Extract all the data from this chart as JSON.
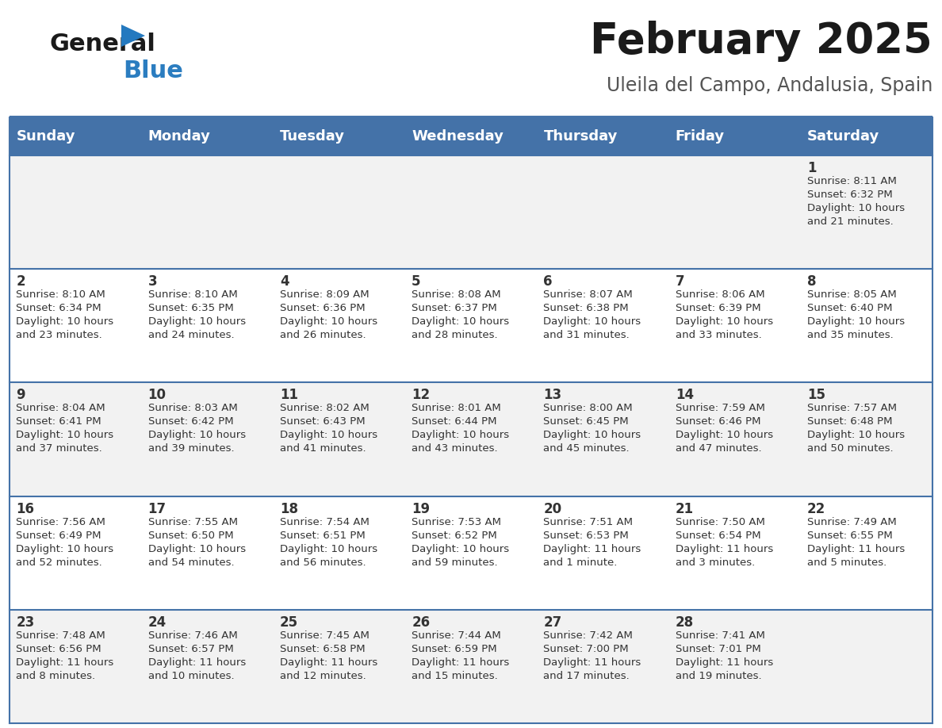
{
  "title": "February 2025",
  "subtitle": "Uleila del Campo, Andalusia, Spain",
  "header_bg": "#4472A8",
  "header_text_color": "#FFFFFF",
  "row_bg_odd": "#F2F2F2",
  "row_bg_even": "#FFFFFF",
  "separator_color": "#4472A8",
  "day_headers": [
    "Sunday",
    "Monday",
    "Tuesday",
    "Wednesday",
    "Thursday",
    "Friday",
    "Saturday"
  ],
  "calendar": [
    [
      {
        "day": "",
        "info": ""
      },
      {
        "day": "",
        "info": ""
      },
      {
        "day": "",
        "info": ""
      },
      {
        "day": "",
        "info": ""
      },
      {
        "day": "",
        "info": ""
      },
      {
        "day": "",
        "info": ""
      },
      {
        "day": "1",
        "info": "Sunrise: 8:11 AM\nSunset: 6:32 PM\nDaylight: 10 hours\nand 21 minutes."
      }
    ],
    [
      {
        "day": "2",
        "info": "Sunrise: 8:10 AM\nSunset: 6:34 PM\nDaylight: 10 hours\nand 23 minutes."
      },
      {
        "day": "3",
        "info": "Sunrise: 8:10 AM\nSunset: 6:35 PM\nDaylight: 10 hours\nand 24 minutes."
      },
      {
        "day": "4",
        "info": "Sunrise: 8:09 AM\nSunset: 6:36 PM\nDaylight: 10 hours\nand 26 minutes."
      },
      {
        "day": "5",
        "info": "Sunrise: 8:08 AM\nSunset: 6:37 PM\nDaylight: 10 hours\nand 28 minutes."
      },
      {
        "day": "6",
        "info": "Sunrise: 8:07 AM\nSunset: 6:38 PM\nDaylight: 10 hours\nand 31 minutes."
      },
      {
        "day": "7",
        "info": "Sunrise: 8:06 AM\nSunset: 6:39 PM\nDaylight: 10 hours\nand 33 minutes."
      },
      {
        "day": "8",
        "info": "Sunrise: 8:05 AM\nSunset: 6:40 PM\nDaylight: 10 hours\nand 35 minutes."
      }
    ],
    [
      {
        "day": "9",
        "info": "Sunrise: 8:04 AM\nSunset: 6:41 PM\nDaylight: 10 hours\nand 37 minutes."
      },
      {
        "day": "10",
        "info": "Sunrise: 8:03 AM\nSunset: 6:42 PM\nDaylight: 10 hours\nand 39 minutes."
      },
      {
        "day": "11",
        "info": "Sunrise: 8:02 AM\nSunset: 6:43 PM\nDaylight: 10 hours\nand 41 minutes."
      },
      {
        "day": "12",
        "info": "Sunrise: 8:01 AM\nSunset: 6:44 PM\nDaylight: 10 hours\nand 43 minutes."
      },
      {
        "day": "13",
        "info": "Sunrise: 8:00 AM\nSunset: 6:45 PM\nDaylight: 10 hours\nand 45 minutes."
      },
      {
        "day": "14",
        "info": "Sunrise: 7:59 AM\nSunset: 6:46 PM\nDaylight: 10 hours\nand 47 minutes."
      },
      {
        "day": "15",
        "info": "Sunrise: 7:57 AM\nSunset: 6:48 PM\nDaylight: 10 hours\nand 50 minutes."
      }
    ],
    [
      {
        "day": "16",
        "info": "Sunrise: 7:56 AM\nSunset: 6:49 PM\nDaylight: 10 hours\nand 52 minutes."
      },
      {
        "day": "17",
        "info": "Sunrise: 7:55 AM\nSunset: 6:50 PM\nDaylight: 10 hours\nand 54 minutes."
      },
      {
        "day": "18",
        "info": "Sunrise: 7:54 AM\nSunset: 6:51 PM\nDaylight: 10 hours\nand 56 minutes."
      },
      {
        "day": "19",
        "info": "Sunrise: 7:53 AM\nSunset: 6:52 PM\nDaylight: 10 hours\nand 59 minutes."
      },
      {
        "day": "20",
        "info": "Sunrise: 7:51 AM\nSunset: 6:53 PM\nDaylight: 11 hours\nand 1 minute."
      },
      {
        "day": "21",
        "info": "Sunrise: 7:50 AM\nSunset: 6:54 PM\nDaylight: 11 hours\nand 3 minutes."
      },
      {
        "day": "22",
        "info": "Sunrise: 7:49 AM\nSunset: 6:55 PM\nDaylight: 11 hours\nand 5 minutes."
      }
    ],
    [
      {
        "day": "23",
        "info": "Sunrise: 7:48 AM\nSunset: 6:56 PM\nDaylight: 11 hours\nand 8 minutes."
      },
      {
        "day": "24",
        "info": "Sunrise: 7:46 AM\nSunset: 6:57 PM\nDaylight: 11 hours\nand 10 minutes."
      },
      {
        "day": "25",
        "info": "Sunrise: 7:45 AM\nSunset: 6:58 PM\nDaylight: 11 hours\nand 12 minutes."
      },
      {
        "day": "26",
        "info": "Sunrise: 7:44 AM\nSunset: 6:59 PM\nDaylight: 11 hours\nand 15 minutes."
      },
      {
        "day": "27",
        "info": "Sunrise: 7:42 AM\nSunset: 7:00 PM\nDaylight: 11 hours\nand 17 minutes."
      },
      {
        "day": "28",
        "info": "Sunrise: 7:41 AM\nSunset: 7:01 PM\nDaylight: 11 hours\nand 19 minutes."
      },
      {
        "day": "",
        "info": ""
      }
    ]
  ],
  "title_fontsize": 38,
  "subtitle_fontsize": 17,
  "header_fontsize": 13,
  "day_num_fontsize": 12,
  "info_fontsize": 9.5,
  "logo_general_color": "#1a1a1a",
  "logo_blue_color": "#2B7DC0",
  "logo_triangle_color": "#2479BF",
  "fig_width": 11.88,
  "fig_height": 9.18,
  "dpi": 100
}
